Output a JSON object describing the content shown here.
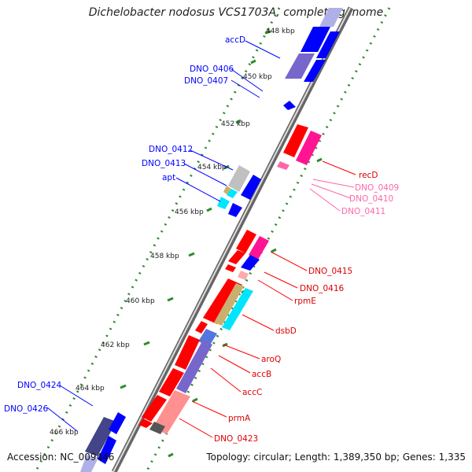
{
  "title": "Dichelobacter nodosus VCS1703A, complete genome",
  "accession": "Accession: NC_009446",
  "summary": "Topology: circular; Length: 1,389,350 bp; Genes: 1,335",
  "kbp_ticks": [
    "448 kbp",
    "450 kbp",
    "452 kbp",
    "454 kbp",
    "456 kbp",
    "458 kbp",
    "460 kbp",
    "462 kbp",
    "464 kbp",
    "466 kbp"
  ],
  "gene_labels": {
    "accD": "accD",
    "DNO_0406": "DNO_0406",
    "DNO_0407": "DNO_0407",
    "DNO_0412": "DNO_0412",
    "DNO_0413": "DNO_0413",
    "apt": "apt",
    "recD": "recD",
    "DNO_0409": "DNO_0409",
    "DNO_0410": "DNO_0410",
    "DNO_0411": "DNO_0411",
    "DNO_0415": "DNO_0415",
    "DNO_0416": "DNO_0416",
    "rpmE": "rpmE",
    "dsbD": "dsbD",
    "aroQ": "aroQ",
    "accB": "accB",
    "accC": "accC",
    "prmA": "prmA",
    "DNO_0423": "DNO_0423",
    "DNO_0424": "DNO_0424",
    "DNO_0426": "DNO_0426"
  },
  "colors": {
    "blue": "#0000ff",
    "red": "#ff0000",
    "pink": "#ff66aa",
    "magenta": "#ff1493",
    "cyan": "#00e5ff",
    "green": "#2e8b2e",
    "grey": "#888888",
    "violet": "#7766cc"
  }
}
